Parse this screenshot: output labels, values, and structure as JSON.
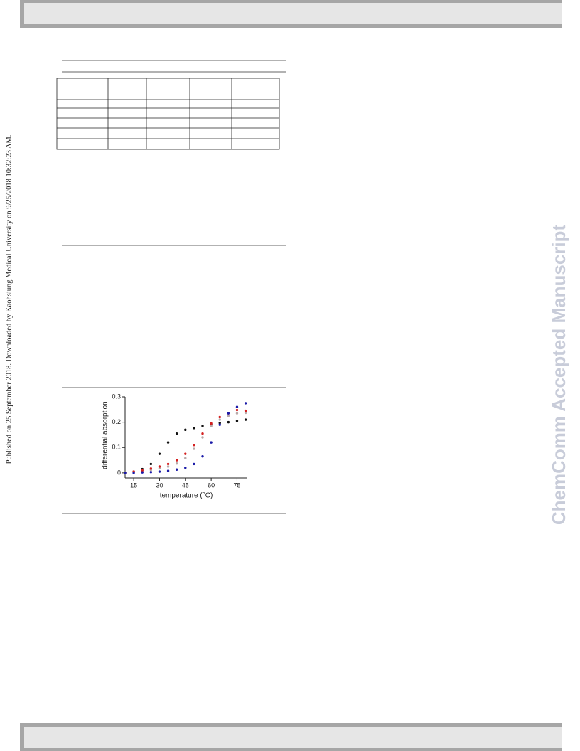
{
  "side_note": "Published on 25 September 2018. Downloaded by Kaohsiung Medical University on 9/25/2018 10:32:23 AM.",
  "watermark": "ChemComm Accepted Manuscript",
  "chart_data": {
    "type": "scatter",
    "ylabel": "differential absorption",
    "xlabel": "temperature (°C)",
    "x": [
      10,
      15,
      20,
      25,
      30,
      35,
      40,
      45,
      50,
      55,
      60,
      65,
      70,
      75,
      80
    ],
    "series": [
      {
        "color": "#111111",
        "values": [
          0,
          0.005,
          0.015,
          0.035,
          0.075,
          0.12,
          0.155,
          0.17,
          0.177,
          0.185,
          0.19,
          0.197,
          0.2,
          0.205,
          0.21
        ]
      },
      {
        "color": "#b8a8a8",
        "values": [
          0,
          0.003,
          0.007,
          0.012,
          0.018,
          0.025,
          0.037,
          0.058,
          0.095,
          0.14,
          0.185,
          0.21,
          0.225,
          0.235,
          0.237
        ]
      },
      {
        "color": "#d42020",
        "values": [
          0,
          0.005,
          0.01,
          0.017,
          0.025,
          0.035,
          0.05,
          0.075,
          0.11,
          0.155,
          0.195,
          0.22,
          0.235,
          0.248,
          0.245
        ]
      },
      {
        "color": "#1a1aa8",
        "values": [
          0,
          0,
          0.002,
          0.003,
          0.005,
          0.008,
          0.013,
          0.02,
          0.035,
          0.065,
          0.12,
          0.19,
          0.235,
          0.26,
          0.275
        ]
      }
    ],
    "xlim": [
      10,
      81
    ],
    "xticks": [
      15,
      30,
      45,
      60,
      75
    ],
    "ylim": [
      -0.02,
      0.3
    ],
    "yticks": [
      0,
      0.1,
      0.2,
      0.3
    ]
  }
}
